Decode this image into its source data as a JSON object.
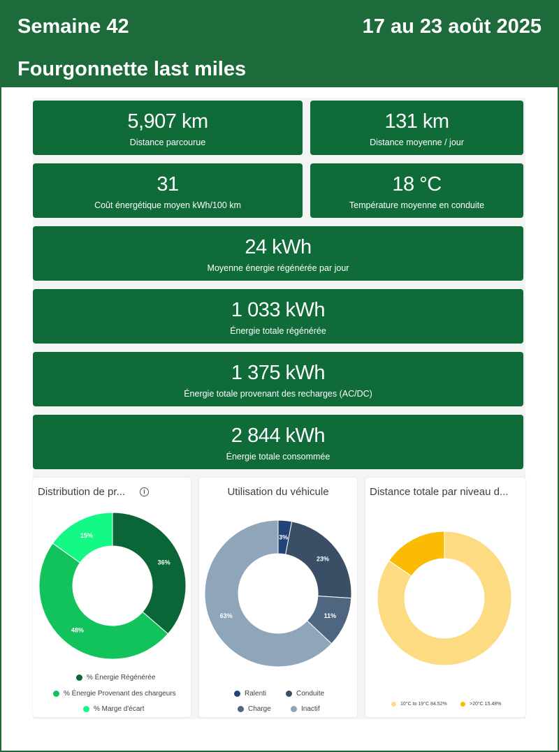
{
  "header": {
    "week": "Semaine 42",
    "dates": "17 au 23 août 2025",
    "subtitle": "Fourgonnette last miles"
  },
  "kpis": [
    {
      "value": "5,907 km",
      "label": "Distance parcourue"
    },
    {
      "value": "131 km",
      "label": "Distance moyenne / jour"
    },
    {
      "value": "31",
      "label": "Coût énergétique moyen kWh/100 km"
    },
    {
      "value": "18 °C",
      "label": "Température moyenne en conduite"
    },
    {
      "value": "24 kWh",
      "label": "Moyenne énergie régénérée par jour"
    },
    {
      "value": "1 033 kWh",
      "label": "Énergie totale régénérée"
    },
    {
      "value": "1 375 kWh",
      "label": "Énergie totale provenant des recharges (AC/DC)"
    },
    {
      "value": "2 844 kWh",
      "label": "Énergie totale consommée"
    }
  ],
  "chart_data": [
    {
      "type": "pie",
      "title": "Distribution de pr...",
      "info_icon": "info-icon",
      "donut": true,
      "series": [
        {
          "name": "% Énergie Régénérée",
          "value": 36,
          "label": "36%",
          "color": "#0a6637"
        },
        {
          "name": "% Énergie Provenant des chargeurs",
          "value": 48,
          "label": "48%",
          "color": "#12c35c"
        },
        {
          "name": "% Marge d'écart",
          "value": 15,
          "label": "15%",
          "color": "#14f986"
        }
      ]
    },
    {
      "type": "pie",
      "title": "Utilisation du véhicule",
      "donut": true,
      "series": [
        {
          "name": "Ralenti",
          "value": 3,
          "label": "3%",
          "color": "#23447a"
        },
        {
          "name": "Conduite",
          "value": 23,
          "label": "23%",
          "color": "#3a4e66"
        },
        {
          "name": "Charge",
          "value": 11,
          "label": "11%",
          "color": "#4e6680"
        },
        {
          "name": "Inactif",
          "value": 63,
          "label": "63%",
          "color": "#8fa5ba"
        }
      ]
    },
    {
      "type": "pie",
      "title": "Distance totale par niveau d...",
      "donut": true,
      "series": [
        {
          "name": "10°C to 19°C 84.52%",
          "value": 84.52,
          "label": "",
          "color": "#fddb82"
        },
        {
          "name": ">20°C 15.48%",
          "value": 15.48,
          "label": "",
          "color": "#fbbb04"
        }
      ]
    }
  ]
}
